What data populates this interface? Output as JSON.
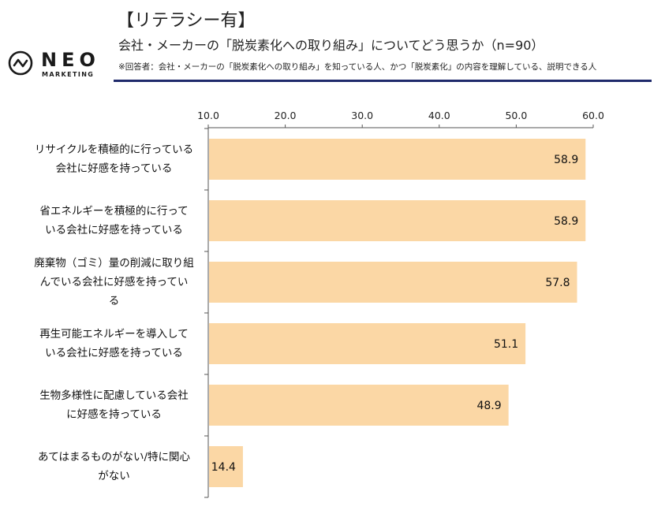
{
  "header": {
    "title": "【リテラシー有】",
    "subtitle": "会社・メーカーの「脱炭素化への取り組み」についてどう思うか（n=90）",
    "note": "※回答者：会社・メーカーの「脱炭素化への取り組み」を知っている人、かつ「脱炭素化」の内容を理解している、説明できる人",
    "accent_color": "#1f2a6b"
  },
  "logo": {
    "name": "NEO",
    "tagline": "MARKETING"
  },
  "chart_data": {
    "type": "bar",
    "orientation": "horizontal",
    "title": "会社・メーカーの「脱炭素化への取り組み」についてどう思うか（n=90）",
    "xlabel": "",
    "ylabel": "",
    "xlim": [
      10,
      60
    ],
    "xticks": [
      "10.0",
      "20.0",
      "30.0",
      "40.0",
      "50.0",
      "60.0"
    ],
    "xtick_values": [
      10,
      20,
      30,
      40,
      50,
      60
    ],
    "x_axis_position": "top",
    "grid": false,
    "bar_color": "#fbd7a5",
    "categories": [
      "リサイクルを積極的に行っている会社に好感を持っている",
      "省エネルギーを積極的に行っている会社に好感を持っている",
      "廃棄物（ゴミ）量の削減に取り組んでいる会社に好感を持っている",
      "再生可能エネルギーを導入している会社に好感を持っている",
      "生物多様性に配慮している会社に好感を持っている",
      "あてはまるものがない/特に関心がない"
    ],
    "category_lines": [
      [
        "リサイクルを積極的に行っている",
        "会社に好感を持っている"
      ],
      [
        "省エネルギーを積極的に行って",
        "いる会社に好感を持っている"
      ],
      [
        "廃棄物（ゴミ）量の削減に取り組",
        "んでいる会社に好感を持ってい",
        "る"
      ],
      [
        "再生可能エネルギーを導入して",
        "いる会社に好感を持っている"
      ],
      [
        "生物多様性に配慮している会社",
        "に好感を持っている"
      ],
      [
        "あてはまるものがない/特に関心",
        "がない"
      ]
    ],
    "values": [
      58.9,
      58.9,
      57.8,
      51.1,
      48.9,
      14.4
    ],
    "value_labels": [
      "58.9",
      "58.9",
      "57.8",
      "51.1",
      "48.9",
      "14.4"
    ]
  }
}
